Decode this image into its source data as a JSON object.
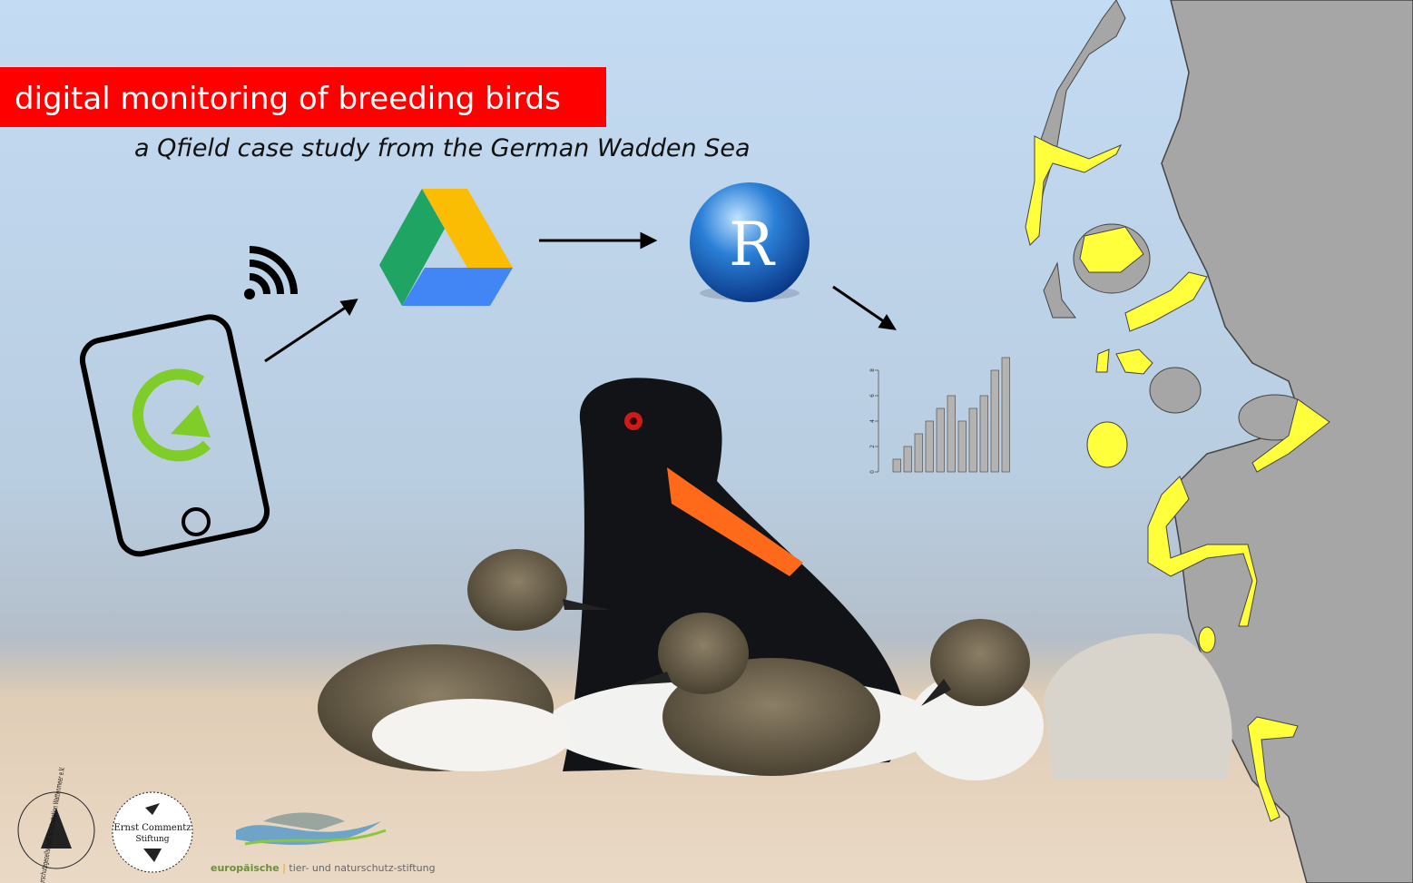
{
  "header": {
    "title": "digital monitoring of breeding birds",
    "subtitle": "a Qfield case study from the German Wadden Sea"
  },
  "r_logo": "R",
  "mini_chart": {
    "type": "bar",
    "values": [
      1,
      2,
      3,
      4,
      5,
      6,
      4,
      5,
      6,
      8,
      9
    ],
    "ylim": [
      0,
      9
    ],
    "yticks": [
      0,
      2,
      4,
      6,
      8
    ],
    "color": "#b3b3b3"
  },
  "logos": {
    "schutzstation": "Naturschutzgesellschaft Schutzstation Wattenmeer e.V.",
    "commentz_line1": "Ernst Commentz",
    "commentz_line2": "Stiftung",
    "foundation_bold": "europäische",
    "foundation_sep": "|",
    "foundation_rest": "tier- und naturschutz-stiftung"
  }
}
